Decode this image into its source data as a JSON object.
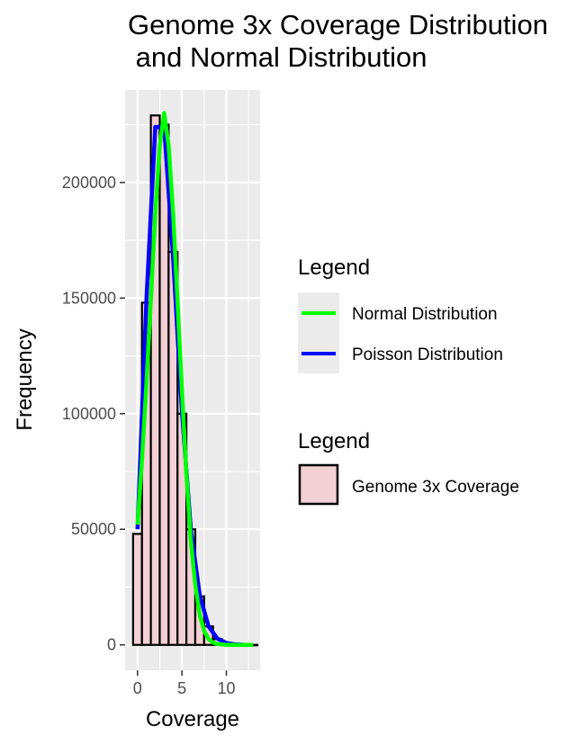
{
  "chart_data": {
    "type": "bar",
    "title": "Genome 3x Coverage Distribution\n and Normal Distribution",
    "xlabel": "Coverage",
    "ylabel": "Frequency",
    "xlim": [
      -1.4,
      13.8
    ],
    "ylim": [
      -11000,
      240000
    ],
    "x_ticks": [
      0,
      5,
      10
    ],
    "x_tick_labels": [
      "0",
      "5",
      "10"
    ],
    "y_ticks": [
      0,
      50000,
      100000,
      150000,
      200000
    ],
    "y_tick_labels": [
      "0",
      "50000",
      "100000",
      "150000",
      "200000"
    ],
    "grid": true,
    "histogram": {
      "name": "Genome 3x Coverage",
      "x": [
        0,
        1,
        2,
        3,
        4,
        5,
        6,
        7,
        8,
        9,
        10,
        11,
        12,
        13
      ],
      "values": [
        48000,
        148000,
        229000,
        225000,
        170000,
        100000,
        50000,
        21000,
        8000,
        2500,
        800,
        200,
        50,
        10
      ],
      "color": "#f2d0d6"
    },
    "series": [
      {
        "name": "Poisson Distribution",
        "color": "#0000ff",
        "x": [
          0,
          1,
          2,
          3,
          4,
          5,
          6,
          7,
          8,
          9,
          10,
          11,
          12,
          13
        ],
        "values": [
          50000,
          149000,
          224000,
          224000,
          168000,
          101000,
          50000,
          21500,
          8000,
          2700,
          800,
          220,
          50,
          12
        ]
      },
      {
        "name": "Normal Distribution",
        "color": "#00ff00",
        "x": [
          0,
          0.5,
          1,
          1.5,
          2,
          2.5,
          3,
          3.5,
          4,
          4.5,
          5,
          5.5,
          6,
          6.5,
          7,
          7.5,
          8,
          8.5,
          9,
          10,
          11,
          12,
          13
        ],
        "values": [
          52000,
          80000,
          113000,
          149000,
          187000,
          216000,
          230000,
          216000,
          187000,
          149000,
          110000,
          74000,
          45000,
          26000,
          13000,
          6000,
          2500,
          1000,
          400,
          60,
          10,
          2,
          0
        ]
      }
    ],
    "legends": [
      {
        "title": "Legend",
        "entries": [
          "Normal Distribution",
          "Poisson Distribution"
        ],
        "placement": "right"
      },
      {
        "title": "Legend",
        "entries": [
          "Genome 3x Coverage"
        ],
        "placement": "right"
      }
    ]
  }
}
